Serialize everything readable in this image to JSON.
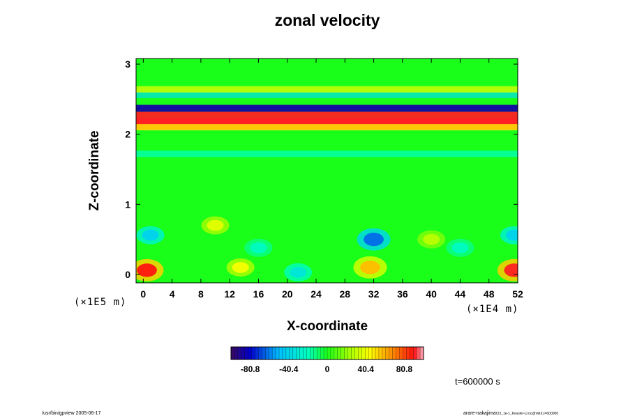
{
  "chart_data": {
    "type": "heatmap",
    "title": "zonal velocity",
    "xlabel": "X-coordinate",
    "ylabel": "Z-coordinate",
    "x_unit": "(×1E4 m)",
    "y_unit": "(×1E5 m)",
    "xlim": [
      -1,
      52
    ],
    "ylim": [
      -0.12,
      3.08
    ],
    "x_ticks": [
      0,
      4,
      8,
      12,
      16,
      20,
      24,
      28,
      32,
      36,
      40,
      44,
      48,
      52
    ],
    "y_ticks": [
      0,
      1,
      2,
      3
    ],
    "colorbar": {
      "ticks": [
        -80.8,
        -40.4,
        0,
        40.4,
        80.8
      ],
      "tick_labels": [
        "-80.8",
        "-40.4",
        "0",
        "40.4",
        "80.8"
      ],
      "range": [
        -101,
        101
      ]
    },
    "features": [
      {
        "x": 0.5,
        "z": 0.06,
        "value": 90
      },
      {
        "x": 13.5,
        "z": 0.1,
        "value": 42
      },
      {
        "x": 21.5,
        "z": 0.03,
        "value": -32
      },
      {
        "x": 31.5,
        "z": 0.1,
        "value": 58
      },
      {
        "x": 51.5,
        "z": 0.06,
        "value": 92
      },
      {
        "x": 1.0,
        "z": 0.56,
        "value": -42
      },
      {
        "x": 32.0,
        "z": 0.5,
        "value": -64
      },
      {
        "x": 51.5,
        "z": 0.56,
        "value": -42
      },
      {
        "x": 10.0,
        "z": 0.7,
        "value": 38
      },
      {
        "x": 16.0,
        "z": 0.38,
        "value": -22
      },
      {
        "x": 44.0,
        "z": 0.38,
        "value": -22
      },
      {
        "x": 40.0,
        "z": 0.5,
        "value": 28
      }
    ],
    "bands": [
      {
        "z": 2.19,
        "value": 92
      },
      {
        "z": 2.37,
        "value": -88
      },
      {
        "z": 2.56,
        "value": -34
      },
      {
        "z": 2.64,
        "value": 38
      },
      {
        "z": 2.1,
        "value": 45
      },
      {
        "z": 1.72,
        "value": -20
      }
    ]
  },
  "time_label": "t=600000 s",
  "footer_left": "/usr/bin/gpview 2005-06-17",
  "footer_right_main": "arare-nakajima",
  "footer_right_small": "Cl3_1e-1_Kessler-U.nc@VelX,t=600000"
}
